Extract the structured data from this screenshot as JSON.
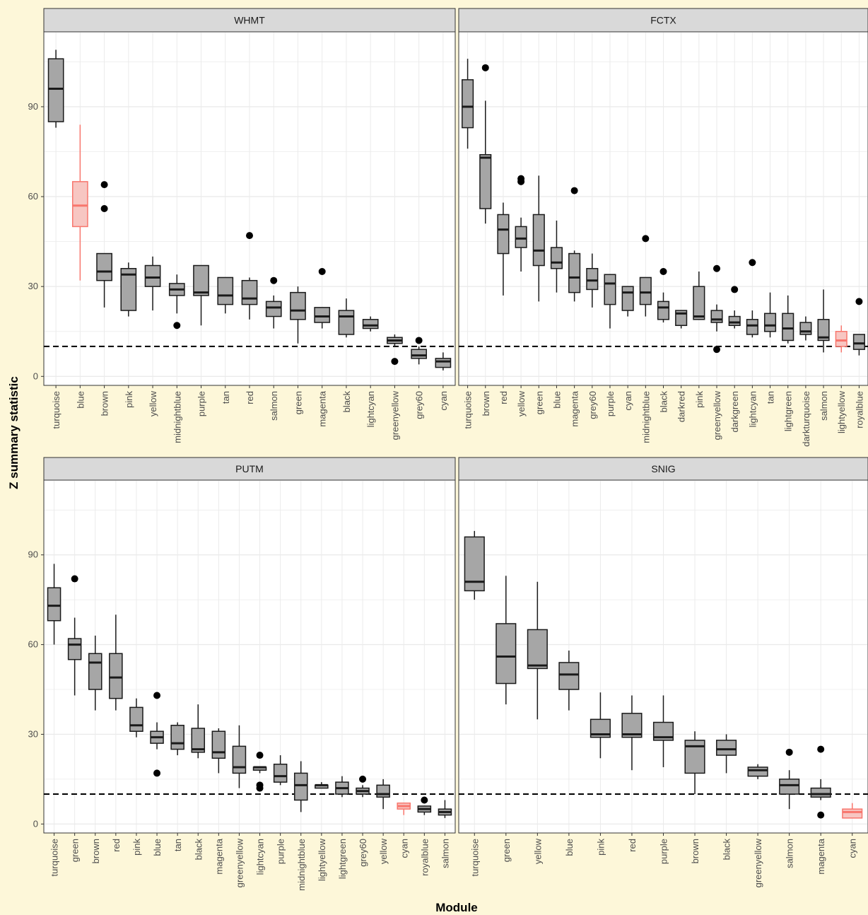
{
  "chart_data": {
    "type": "boxplot",
    "xlabel": "Module",
    "ylabel": "Z summary statistic",
    "ylim": [
      -3,
      115
    ],
    "yticks": [
      0,
      30,
      60,
      90
    ],
    "threshold": 10,
    "colors": {
      "box_fill": "#a6a6a6",
      "highlight_stroke": "#f8766d",
      "highlight_fill": "#f7c6c2",
      "panel_bg": "#ffffff",
      "strip_bg": "#d9d9d9",
      "grid": "#ebebeb"
    },
    "panels": [
      {
        "title": "WHMT",
        "categories": [
          "turquoise",
          "blue",
          "brown",
          "pink",
          "yellow",
          "midnightblue",
          "purple",
          "tan",
          "red",
          "salmon",
          "green",
          "magenta",
          "black",
          "lightcyan",
          "greenyellow",
          "grey60",
          "cyan"
        ],
        "boxes": [
          {
            "low": 83,
            "q1": 85,
            "median": 96,
            "q3": 106,
            "high": 109,
            "outliers": []
          },
          {
            "low": 32,
            "q1": 50,
            "median": 57,
            "q3": 65,
            "high": 84,
            "outliers": [],
            "highlight": true
          },
          {
            "low": 23,
            "q1": 32,
            "median": 35,
            "q3": 41,
            "high": 41,
            "outliers": [
              64,
              56
            ]
          },
          {
            "low": 20,
            "q1": 22,
            "median": 34,
            "q3": 36,
            "high": 38,
            "outliers": []
          },
          {
            "low": 22,
            "q1": 30,
            "median": 33,
            "q3": 37,
            "high": 40,
            "outliers": []
          },
          {
            "low": 21,
            "q1": 27,
            "median": 29,
            "q3": 31,
            "high": 34,
            "outliers": [
              17
            ]
          },
          {
            "low": 17,
            "q1": 27,
            "median": 28,
            "q3": 37,
            "high": 37,
            "outliers": []
          },
          {
            "low": 21,
            "q1": 24,
            "median": 27,
            "q3": 33,
            "high": 33,
            "outliers": []
          },
          {
            "low": 19,
            "q1": 24,
            "median": 26,
            "q3": 32,
            "high": 33,
            "outliers": [
              47
            ]
          },
          {
            "low": 16,
            "q1": 20,
            "median": 23,
            "q3": 25,
            "high": 27,
            "outliers": [
              32
            ]
          },
          {
            "low": 11,
            "q1": 19,
            "median": 22,
            "q3": 28,
            "high": 30,
            "outliers": []
          },
          {
            "low": 16,
            "q1": 18,
            "median": 20,
            "q3": 23,
            "high": 23,
            "outliers": [
              35
            ]
          },
          {
            "low": 13,
            "q1": 14,
            "median": 20,
            "q3": 22,
            "high": 26,
            "outliers": []
          },
          {
            "low": 15,
            "q1": 16,
            "median": 17,
            "q3": 19,
            "high": 20,
            "outliers": []
          },
          {
            "low": 10,
            "q1": 11,
            "median": 12,
            "q3": 13,
            "high": 14,
            "outliers": [
              5
            ]
          },
          {
            "low": 4,
            "q1": 6,
            "median": 7,
            "q3": 9,
            "high": 10,
            "outliers": [
              12
            ]
          },
          {
            "low": 2,
            "q1": 3,
            "median": 5,
            "q3": 6,
            "high": 8,
            "outliers": []
          }
        ]
      },
      {
        "title": "FCTX",
        "categories": [
          "turquoise",
          "brown",
          "red",
          "yellow",
          "green",
          "blue",
          "magenta",
          "grey60",
          "purple",
          "cyan",
          "midnightblue",
          "black",
          "darkred",
          "pink",
          "greenyellow",
          "darkgreen",
          "lightcyan",
          "tan",
          "lightgreen",
          "darkturquoise",
          "salmon",
          "lightyellow",
          "royalblue"
        ],
        "boxes": [
          {
            "low": 76,
            "q1": 83,
            "median": 90,
            "q3": 99,
            "high": 106,
            "outliers": []
          },
          {
            "low": 51,
            "q1": 56,
            "median": 73,
            "q3": 74,
            "high": 92,
            "outliers": [
              103
            ]
          },
          {
            "low": 27,
            "q1": 41,
            "median": 49,
            "q3": 54,
            "high": 58,
            "outliers": []
          },
          {
            "low": 35,
            "q1": 43,
            "median": 46,
            "q3": 50,
            "high": 53,
            "outliers": [
              66,
              65
            ]
          },
          {
            "low": 25,
            "q1": 37,
            "median": 42,
            "q3": 54,
            "high": 67,
            "outliers": []
          },
          {
            "low": 28,
            "q1": 36,
            "median": 38,
            "q3": 43,
            "high": 52,
            "outliers": []
          },
          {
            "low": 25,
            "q1": 28,
            "median": 33,
            "q3": 41,
            "high": 42,
            "outliers": [
              62
            ]
          },
          {
            "low": 23,
            "q1": 29,
            "median": 32,
            "q3": 36,
            "high": 41,
            "outliers": []
          },
          {
            "low": 16,
            "q1": 24,
            "median": 31,
            "q3": 34,
            "high": 34,
            "outliers": []
          },
          {
            "low": 20,
            "q1": 22,
            "median": 28,
            "q3": 30,
            "high": 30,
            "outliers": []
          },
          {
            "low": 20,
            "q1": 24,
            "median": 28,
            "q3": 33,
            "high": 33,
            "outliers": [
              46
            ]
          },
          {
            "low": 18,
            "q1": 19,
            "median": 23,
            "q3": 25,
            "high": 28,
            "outliers": [
              35
            ]
          },
          {
            "low": 16,
            "q1": 17,
            "median": 21,
            "q3": 22,
            "high": 22,
            "outliers": []
          },
          {
            "low": 19,
            "q1": 19,
            "median": 20,
            "q3": 30,
            "high": 35,
            "outliers": []
          },
          {
            "low": 15,
            "q1": 18,
            "median": 19,
            "q3": 22,
            "high": 24,
            "outliers": [
              36,
              9
            ]
          },
          {
            "low": 16,
            "q1": 17,
            "median": 18,
            "q3": 20,
            "high": 22,
            "outliers": [
              29
            ]
          },
          {
            "low": 13,
            "q1": 14,
            "median": 17,
            "q3": 19,
            "high": 22,
            "outliers": [
              38
            ]
          },
          {
            "low": 13,
            "q1": 15,
            "median": 17,
            "q3": 21,
            "high": 28,
            "outliers": []
          },
          {
            "low": 11,
            "q1": 12,
            "median": 16,
            "q3": 21,
            "high": 27,
            "outliers": []
          },
          {
            "low": 12,
            "q1": 14,
            "median": 15,
            "q3": 18,
            "high": 20,
            "outliers": []
          },
          {
            "low": 8,
            "q1": 12,
            "median": 13,
            "q3": 19,
            "high": 29,
            "outliers": []
          },
          {
            "low": 8,
            "q1": 10,
            "median": 12,
            "q3": 15,
            "high": 17,
            "outliers": [],
            "highlight": true
          },
          {
            "low": 7,
            "q1": 9,
            "median": 11,
            "q3": 14,
            "high": 14,
            "outliers": [
              25
            ]
          }
        ]
      },
      {
        "title": "PUTM",
        "categories": [
          "turquoise",
          "green",
          "brown",
          "red",
          "pink",
          "blue",
          "tan",
          "black",
          "magenta",
          "greenyellow",
          "lightcyan",
          "purple",
          "midnightblue",
          "lightyellow",
          "lightgreen",
          "grey60",
          "yellow",
          "cyan",
          "royalblue",
          "salmon"
        ],
        "boxes": [
          {
            "low": 60,
            "q1": 68,
            "median": 73,
            "q3": 79,
            "high": 87,
            "outliers": []
          },
          {
            "low": 43,
            "q1": 55,
            "median": 60,
            "q3": 62,
            "high": 69,
            "outliers": [
              82
            ]
          },
          {
            "low": 38,
            "q1": 45,
            "median": 54,
            "q3": 57,
            "high": 63,
            "outliers": []
          },
          {
            "low": 38,
            "q1": 42,
            "median": 49,
            "q3": 57,
            "high": 70,
            "outliers": []
          },
          {
            "low": 29,
            "q1": 31,
            "median": 33,
            "q3": 39,
            "high": 42,
            "outliers": []
          },
          {
            "low": 25,
            "q1": 27,
            "median": 29,
            "q3": 31,
            "high": 34,
            "outliers": [
              43,
              17
            ]
          },
          {
            "low": 23,
            "q1": 25,
            "median": 27,
            "q3": 33,
            "high": 34,
            "outliers": []
          },
          {
            "low": 22,
            "q1": 24,
            "median": 25,
            "q3": 32,
            "high": 40,
            "outliers": []
          },
          {
            "low": 17,
            "q1": 22,
            "median": 24,
            "q3": 31,
            "high": 32,
            "outliers": []
          },
          {
            "low": 12,
            "q1": 17,
            "median": 19,
            "q3": 26,
            "high": 33,
            "outliers": []
          },
          {
            "low": 17,
            "q1": 18,
            "median": 19,
            "q3": 19,
            "high": 19,
            "outliers": [
              23,
              13,
              12
            ]
          },
          {
            "low": 13,
            "q1": 14,
            "median": 16,
            "q3": 20,
            "high": 23,
            "outliers": []
          },
          {
            "low": 4,
            "q1": 8,
            "median": 13,
            "q3": 17,
            "high": 21,
            "outliers": []
          },
          {
            "low": 12,
            "q1": 12,
            "median": 13,
            "q3": 13,
            "high": 14,
            "outliers": []
          },
          {
            "low": 9,
            "q1": 10,
            "median": 12,
            "q3": 14,
            "high": 16,
            "outliers": []
          },
          {
            "low": 9,
            "q1": 10,
            "median": 11,
            "q3": 12,
            "high": 13,
            "outliers": [
              15
            ]
          },
          {
            "low": 5,
            "q1": 9,
            "median": 10,
            "q3": 13,
            "high": 15,
            "outliers": []
          },
          {
            "low": 3,
            "q1": 5,
            "median": 6,
            "q3": 7,
            "high": 7,
            "outliers": [],
            "highlight": true
          },
          {
            "low": 3,
            "q1": 4,
            "median": 5,
            "q3": 6,
            "high": 6,
            "outliers": [
              8
            ]
          },
          {
            "low": 2,
            "q1": 3,
            "median": 4,
            "q3": 5,
            "high": 8,
            "outliers": []
          }
        ]
      },
      {
        "title": "SNIG",
        "categories": [
          "turquoise",
          "green",
          "yellow",
          "blue",
          "pink",
          "red",
          "purple",
          "brown",
          "black",
          "greenyellow",
          "salmon",
          "magenta",
          "cyan"
        ],
        "boxes": [
          {
            "low": 75,
            "q1": 78,
            "median": 81,
            "q3": 96,
            "high": 98,
            "outliers": []
          },
          {
            "low": 40,
            "q1": 47,
            "median": 56,
            "q3": 67,
            "high": 83,
            "outliers": []
          },
          {
            "low": 35,
            "q1": 52,
            "median": 53,
            "q3": 65,
            "high": 81,
            "outliers": []
          },
          {
            "low": 38,
            "q1": 45,
            "median": 50,
            "q3": 54,
            "high": 58,
            "outliers": []
          },
          {
            "low": 22,
            "q1": 29,
            "median": 30,
            "q3": 35,
            "high": 44,
            "outliers": []
          },
          {
            "low": 18,
            "q1": 29,
            "median": 30,
            "q3": 37,
            "high": 43,
            "outliers": []
          },
          {
            "low": 19,
            "q1": 28,
            "median": 29,
            "q3": 34,
            "high": 43,
            "outliers": []
          },
          {
            "low": 10,
            "q1": 17,
            "median": 26,
            "q3": 28,
            "high": 31,
            "outliers": []
          },
          {
            "low": 17,
            "q1": 23,
            "median": 25,
            "q3": 28,
            "high": 30,
            "outliers": []
          },
          {
            "low": 15,
            "q1": 16,
            "median": 18,
            "q3": 19,
            "high": 20,
            "outliers": []
          },
          {
            "low": 5,
            "q1": 10,
            "median": 13,
            "q3": 15,
            "high": 18,
            "outliers": [
              24
            ]
          },
          {
            "low": 8,
            "q1": 9,
            "median": 10,
            "q3": 12,
            "high": 15,
            "outliers": [
              25,
              3
            ]
          },
          {
            "low": 2,
            "q1": 2,
            "median": 4,
            "q3": 5,
            "high": 7,
            "outliers": [],
            "highlight": true
          }
        ]
      }
    ]
  }
}
